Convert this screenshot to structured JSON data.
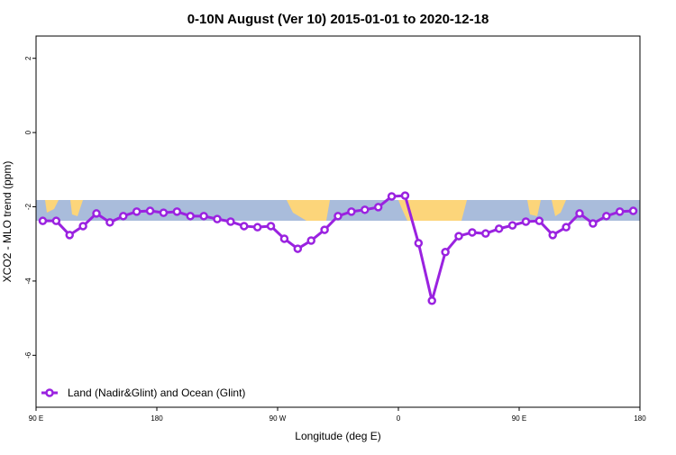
{
  "chart_data": {
    "type": "line",
    "title": "0-10N August (Ver 10)   2015-01-01 to 2020-12-18",
    "xlabel": "Longitude (deg E)",
    "ylabel": "XCO2 - MLO trend (ppm)",
    "x": [
      95,
      105,
      115,
      125,
      135,
      145,
      155,
      165,
      175,
      185,
      195,
      205,
      215,
      225,
      235,
      245,
      255,
      265,
      275,
      285,
      295,
      305,
      315,
      325,
      335,
      345,
      355,
      365,
      375,
      385,
      395,
      405,
      415,
      425,
      435,
      445,
      455,
      465,
      475,
      485,
      495,
      505,
      515,
      525,
      535
    ],
    "series": [
      {
        "name": "Land (Nadir&Glint) and Ocean (Glint)",
        "color": "#9a22e0",
        "values": [
          -2.38,
          -2.38,
          -2.76,
          -2.52,
          -2.18,
          -2.42,
          -2.25,
          -2.13,
          -2.11,
          -2.16,
          -2.13,
          -2.25,
          -2.25,
          -2.33,
          -2.4,
          -2.52,
          -2.55,
          -2.52,
          -2.86,
          -3.13,
          -2.91,
          -2.62,
          -2.25,
          -2.13,
          -2.08,
          -2.01,
          -1.72,
          -1.7,
          -2.98,
          -4.53,
          -3.22,
          -2.79,
          -2.69,
          -2.72,
          -2.59,
          -2.5,
          -2.4,
          -2.38,
          -2.76,
          -2.55,
          -2.18,
          -2.45,
          -2.25,
          -2.13,
          -2.11
        ]
      }
    ],
    "xlim": [
      90,
      540
    ],
    "xticks": [
      {
        "value": 90,
        "label": "90 E"
      },
      180,
      {
        "value": 270,
        "label": "90 W"
      },
      {
        "value": 360,
        "label": "0"
      },
      {
        "value": 450,
        "label": "90 E"
      },
      {
        "value": 540,
        "label": "180"
      }
    ],
    "ylim": [
      -7.4,
      2.6
    ],
    "yticks": [
      2,
      0,
      -2,
      -4,
      -6
    ],
    "legend": "bottom-left"
  }
}
